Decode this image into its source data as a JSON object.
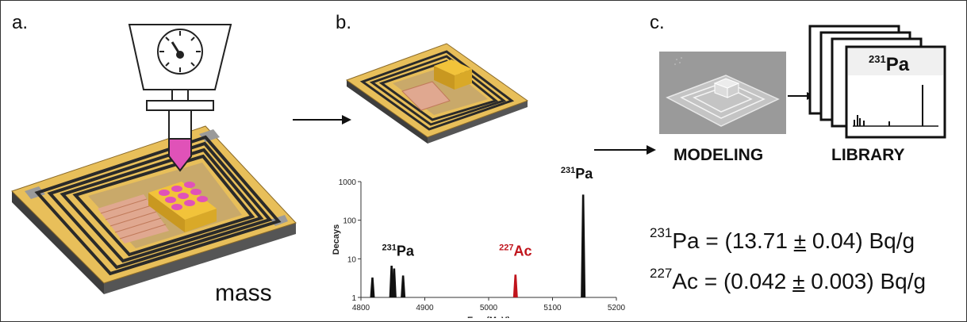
{
  "panels": {
    "a": {
      "label": "a.",
      "caption": "mass"
    },
    "b": {
      "label": "b."
    },
    "c": {
      "label": "c.",
      "modeling_label": "MODELING",
      "library_label": "LIBRARY"
    }
  },
  "chart_data": {
    "type": "line",
    "title": "",
    "xlabel_main": "E",
    "xlabel_sub": "TES",
    "xlabel_unit": "(MeV)",
    "ylabel": "Decays",
    "x_ticks": [
      "4800",
      "4900",
      "5000",
      "5100",
      "5200"
    ],
    "y_ticks": [
      "1",
      "10",
      "100",
      "1000"
    ],
    "xlim": [
      4800,
      5200
    ],
    "ylim": [
      1,
      1000
    ],
    "y_scale": "log",
    "peaks": [
      {
        "x": 4818,
        "y": 3.2,
        "color": "#111111"
      },
      {
        "x": 4848,
        "y": 6.5,
        "color": "#111111"
      },
      {
        "x": 4852,
        "y": 5.5,
        "color": "#111111"
      },
      {
        "x": 4866,
        "y": 3.6,
        "color": "#111111"
      },
      {
        "x": 5042,
        "y": 3.8,
        "color": "#c0141c"
      },
      {
        "x": 5148,
        "y": 450,
        "color": "#111111"
      }
    ],
    "annotations": [
      {
        "text": "Pa",
        "mass": "231",
        "x": 4858,
        "y": 12,
        "color": "#111111"
      },
      {
        "text": "Ac",
        "mass": "227",
        "x": 5042,
        "y": 12,
        "color": "#c0141c"
      },
      {
        "text": "Pa",
        "mass": "231",
        "x": 5138,
        "y": 1200,
        "color": "#111111"
      }
    ]
  },
  "library_card": {
    "mass": "231",
    "element": "Pa"
  },
  "results": [
    {
      "mass": "231",
      "element": "Pa",
      "prefix": " = (13.71 ",
      "pm": "±",
      "suffix": " 0.04) Bq/g"
    },
    {
      "mass": "227",
      "element": "Ac",
      "prefix": " = (0.042 ",
      "pm": "±",
      "suffix": " 0.003) Bq/g"
    }
  ],
  "colors": {
    "gold": "#e8bf5a",
    "substrate": "#c9a96a",
    "absorber": "#f2c33a",
    "pink": "#e052b8",
    "tes_pad": "#e0a890",
    "wires": "#2a2a2a",
    "red": "#c0141c"
  }
}
